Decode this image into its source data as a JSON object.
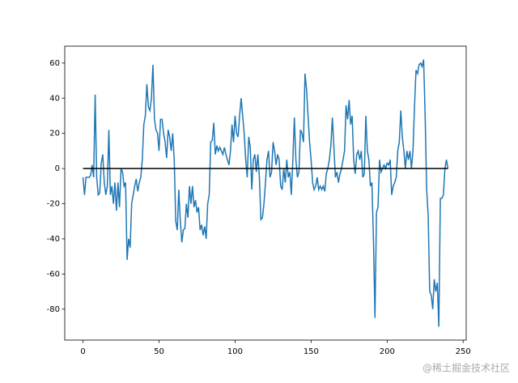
{
  "chart_data": {
    "type": "line",
    "x": [
      0,
      1,
      2,
      3,
      4,
      5,
      6,
      7,
      8,
      9,
      10,
      11,
      12,
      13,
      14,
      15,
      16,
      17,
      18,
      19,
      20,
      21,
      22,
      23,
      24,
      25,
      26,
      27,
      28,
      29,
      30,
      31,
      32,
      33,
      34,
      35,
      36,
      37,
      38,
      39,
      40,
      41,
      42,
      43,
      44,
      45,
      46,
      47,
      48,
      49,
      50,
      51,
      52,
      53,
      54,
      55,
      56,
      57,
      58,
      59,
      60,
      61,
      62,
      63,
      64,
      65,
      66,
      67,
      68,
      69,
      70,
      71,
      72,
      73,
      74,
      75,
      76,
      77,
      78,
      79,
      80,
      81,
      82,
      83,
      84,
      85,
      86,
      87,
      88,
      89,
      90,
      91,
      92,
      93,
      94,
      95,
      96,
      97,
      98,
      99,
      100,
      101,
      102,
      103,
      104,
      105,
      106,
      107,
      108,
      109,
      110,
      111,
      112,
      113,
      114,
      115,
      116,
      117,
      118,
      119,
      120,
      121,
      122,
      123,
      124,
      125,
      126,
      127,
      128,
      129,
      130,
      131,
      132,
      133,
      134,
      135,
      136,
      137,
      138,
      139,
      140,
      141,
      142,
      143,
      144,
      145,
      146,
      147,
      148,
      149,
      150,
      151,
      152,
      153,
      154,
      155,
      156,
      157,
      158,
      159,
      160,
      161,
      162,
      163,
      164,
      165,
      166,
      167,
      168,
      169,
      170,
      171,
      172,
      173,
      174,
      175,
      176,
      177,
      178,
      179,
      180,
      181,
      182,
      183,
      184,
      185,
      186,
      187,
      188,
      189,
      190,
      191,
      192,
      193,
      194,
      195,
      196,
      197,
      198,
      199,
      200,
      201,
      202,
      203,
      204,
      205,
      206,
      207,
      208,
      209,
      210,
      211,
      212,
      213,
      214,
      215,
      216,
      217,
      218,
      219,
      220,
      221,
      222,
      223,
      224,
      225,
      226,
      227,
      228,
      229,
      230,
      231,
      232,
      233,
      234,
      235,
      236,
      237,
      238,
      239,
      240
    ],
    "series": [
      {
        "color": "#1f77b4",
        "values": [
          -5,
          -15,
          -5,
          -5,
          -5,
          -4,
          2,
          -5,
          42,
          -5,
          -15,
          -14,
          3,
          8,
          -8,
          -15,
          -10,
          22,
          -15,
          -10,
          -20,
          -8,
          -24,
          -8,
          -22,
          0,
          -2,
          -10,
          -8,
          -52,
          -40,
          -45,
          -20,
          -15,
          -10,
          -6,
          -13,
          -8,
          -5,
          5,
          25,
          30,
          48,
          35,
          33,
          40,
          59,
          28,
          22,
          20,
          10,
          28,
          28,
          20,
          15,
          6,
          22,
          18,
          10,
          20,
          5,
          -30,
          -35,
          -12,
          -30,
          -42,
          -35,
          -34,
          -20,
          -28,
          -10,
          -20,
          -10,
          -22,
          -18,
          -25,
          -22,
          -35,
          -32,
          -38,
          -33,
          -40,
          -20,
          -15,
          15,
          16,
          26,
          8,
          13,
          10,
          12,
          10,
          8,
          12,
          8,
          5,
          2,
          10,
          25,
          15,
          30,
          20,
          18,
          30,
          40,
          30,
          20,
          5,
          -5,
          18,
          12,
          -12,
          5,
          8,
          -2,
          8,
          -5,
          -29,
          -28,
          -20,
          -8,
          5,
          10,
          -5,
          -2,
          15,
          10,
          2,
          8,
          5,
          -10,
          -12,
          0,
          -8,
          5,
          -5,
          -2,
          -15,
          5,
          29,
          5,
          -5,
          -2,
          22,
          20,
          15,
          54,
          45,
          30,
          15,
          5,
          -8,
          -12,
          -10,
          -5,
          -12,
          -10,
          -12,
          -10,
          -13,
          -3,
          0,
          5,
          13,
          29,
          12,
          -5,
          -2,
          -8,
          -3,
          0,
          5,
          10,
          36,
          28,
          39,
          25,
          30,
          5,
          -3,
          8,
          10,
          5,
          10,
          -5,
          -3,
          30,
          10,
          5,
          -10,
          -8,
          -40,
          -85,
          -25,
          -22,
          5,
          -2,
          0,
          2,
          0,
          3,
          2,
          5,
          -15,
          -10,
          -8,
          -5,
          10,
          15,
          33,
          18,
          10,
          0,
          10,
          5,
          10,
          0,
          10,
          35,
          56,
          54,
          59,
          60,
          58,
          62,
          30,
          -12,
          -27,
          -70,
          -72,
          -80,
          -63,
          -70,
          -65,
          -90,
          -17,
          -17,
          -15,
          0,
          5,
          0
        ]
      },
      {
        "color": "#000000",
        "x": [
          0,
          240
        ],
        "values": [
          0,
          0
        ]
      }
    ],
    "xlim": [
      -12,
      252
    ],
    "ylim": [
      -97.6,
      69.6
    ],
    "xticks": [
      0,
      50,
      100,
      150,
      200,
      250
    ],
    "yticks": [
      -80,
      -60,
      -40,
      -20,
      0,
      20,
      40,
      60
    ],
    "watermark": "@稀土掘金技术社区"
  }
}
